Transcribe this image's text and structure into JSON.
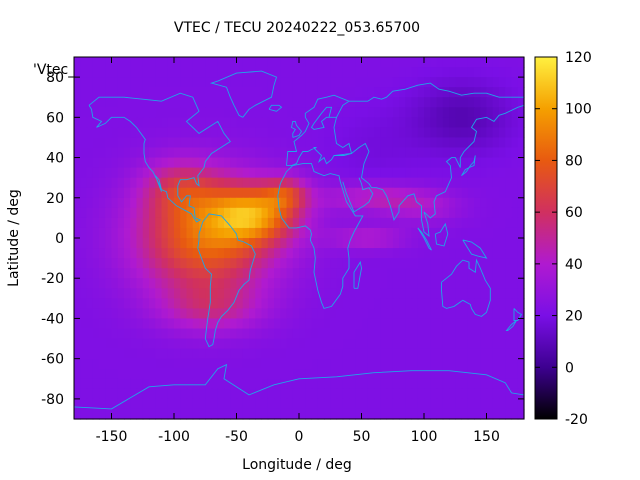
{
  "chart_data": {
    "type": "heatmap",
    "title": "VTEC / TECU 20240222_053.65700",
    "xlabel": "Longitude / deg",
    "ylabel": "Latitude / deg",
    "series_label": "'Vtec_",
    "xlim": [
      -180,
      180
    ],
    "ylim": [
      -90,
      90
    ],
    "xticks": [
      -150,
      -100,
      -50,
      0,
      50,
      100,
      150
    ],
    "yticks": [
      -80,
      -60,
      -40,
      -20,
      0,
      20,
      40,
      60,
      80
    ],
    "colorbar": {
      "range": [
        -20,
        120
      ],
      "ticks": [
        -20,
        0,
        20,
        40,
        60,
        80,
        100,
        120
      ],
      "colormap": [
        "#000000",
        "#3d0090",
        "#7a0fe6",
        "#b01ad0",
        "#d03060",
        "#e85a10",
        "#f5a000",
        "#fff040"
      ]
    },
    "field": {
      "description": "Gridded VTEC values (TECU); rows from lat 87.5 (north) to -87.5 (south) in 5 deg steps, columns from lon -180 to 180 in 5 deg steps",
      "lat_step": 5,
      "lon_step": 5,
      "background_value": 22,
      "blobs": [
        {
          "lon": -75,
          "lat": 0,
          "sx": 55,
          "sy": 28,
          "amp": 62
        },
        {
          "lon": -35,
          "lat": 12,
          "sx": 35,
          "sy": 14,
          "amp": 55
        },
        {
          "lon": -10,
          "lat": 22,
          "sx": 18,
          "sy": 8,
          "amp": 30
        },
        {
          "lon": -95,
          "lat": 25,
          "sx": 30,
          "sy": 14,
          "amp": 25
        },
        {
          "lon": 60,
          "lat": 20,
          "sx": 40,
          "sy": 7,
          "amp": 22
        },
        {
          "lon": 55,
          "lat": 0,
          "sx": 30,
          "sy": 6,
          "amp": 18
        },
        {
          "lon": -70,
          "lat": -35,
          "sx": 40,
          "sy": 12,
          "amp": 22
        },
        {
          "lon": 100,
          "lat": 15,
          "sx": 30,
          "sy": 8,
          "amp": 14
        }
      ],
      "depletions": [
        {
          "lon": 130,
          "lat": 60,
          "sx": 40,
          "sy": 18,
          "amp": -14
        },
        {
          "lon": 60,
          "lat": 45,
          "sx": 40,
          "sy": 20,
          "amp": -4
        }
      ]
    }
  }
}
